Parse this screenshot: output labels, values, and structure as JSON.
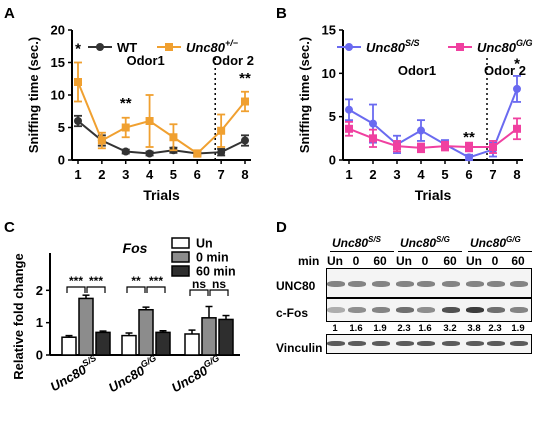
{
  "panels": {
    "a": "A",
    "b": "B",
    "c": "C",
    "d": "D"
  },
  "chart_data": [
    {
      "type": "line",
      "panel": "A",
      "xlabel": "Trials",
      "ylabel": "Sniffing time (sec.)",
      "x": [
        1,
        2,
        3,
        4,
        5,
        6,
        7,
        8
      ],
      "ylim": [
        0,
        20
      ],
      "yticks": [
        0,
        5,
        10,
        15,
        20
      ],
      "series": [
        {
          "name": "WT",
          "values": [
            6,
            3,
            1.3,
            1,
            1.5,
            1,
            1.2,
            3
          ],
          "errors": [
            0.8,
            0.8,
            0.3,
            0.3,
            0.4,
            0.3,
            0.5,
            0.8
          ],
          "color": "#333333",
          "marker": "circle"
        },
        {
          "name": "Unc80",
          "name_sup": "+/−",
          "values": [
            12,
            3,
            5,
            6,
            3.5,
            1,
            4.5,
            9
          ],
          "errors": [
            3,
            1.2,
            1.5,
            4,
            2,
            0.5,
            2.5,
            1.5
          ],
          "color": "#f0a030",
          "marker": "square"
        }
      ],
      "annotations": [
        "*",
        "**",
        "**"
      ],
      "region_labels": [
        "Odor1",
        "Odor 2"
      ]
    },
    {
      "type": "line",
      "panel": "B",
      "xlabel": "Trials",
      "ylabel": "Sniffing time (sec.)",
      "x": [
        1,
        2,
        3,
        4,
        5,
        6,
        7,
        8
      ],
      "ylim": [
        0,
        15
      ],
      "yticks": [
        0,
        5,
        10,
        15
      ],
      "series": [
        {
          "name": "Unc80",
          "name_sup": "S/S",
          "values": [
            5.8,
            4.2,
            1.8,
            3.4,
            1.8,
            0.3,
            1.2,
            8.2
          ],
          "errors": [
            1.2,
            2.2,
            1,
            1.2,
            0.5,
            0.3,
            0.8,
            1.5
          ],
          "color": "#6a6af0",
          "marker": "circle"
        },
        {
          "name": "Unc80",
          "name_sup": "G/G",
          "values": [
            3.6,
            2.5,
            1.6,
            1.4,
            1.6,
            1.5,
            1.5,
            3.6
          ],
          "errors": [
            0.8,
            1,
            0.6,
            0.5,
            0.5,
            0.5,
            0.7,
            1.2
          ],
          "color": "#f040a0",
          "marker": "square"
        }
      ],
      "annotations": [
        "**",
        "*"
      ],
      "region_labels": [
        "Odor1",
        "Odor 2"
      ]
    },
    {
      "type": "bar",
      "panel": "C",
      "title": "Fos",
      "ylabel": "Relative fold change",
      "ylim": [
        0,
        3
      ],
      "yticks": [
        0,
        1,
        2
      ],
      "categories": [
        {
          "name": "Unc80",
          "sup": "S/S"
        },
        {
          "name": "Unc80",
          "sup": "G/G"
        },
        {
          "name": "Unc80",
          "sup": "G/G"
        }
      ],
      "series": [
        {
          "name": "Un",
          "values": [
            0.55,
            0.6,
            0.65
          ],
          "errors": [
            0.05,
            0.08,
            0.12
          ],
          "color": "#ffffff"
        },
        {
          "name": "0 min",
          "values": [
            1.75,
            1.4,
            1.15
          ],
          "errors": [
            0.1,
            0.08,
            0.35
          ],
          "color": "#8c8c8c"
        },
        {
          "name": "60 min",
          "values": [
            0.7,
            0.7,
            1.1
          ],
          "errors": [
            0.04,
            0.05,
            0.12
          ],
          "color": "#2e2e2e"
        }
      ],
      "significance": [
        {
          "group": 0,
          "labels": [
            "***",
            "***"
          ]
        },
        {
          "group": 1,
          "labels": [
            "**",
            "***"
          ]
        },
        {
          "group": 2,
          "labels": [
            "ns",
            "ns"
          ]
        }
      ]
    }
  ],
  "blot": {
    "row_min_label": "min",
    "groups": [
      {
        "name": "Unc80",
        "sup": "S/S",
        "lanes": [
          "Un",
          "0",
          "60"
        ]
      },
      {
        "name": "Unc80",
        "sup": "S/G",
        "lanes": [
          "Un",
          "0",
          "60"
        ]
      },
      {
        "name": "Unc80",
        "sup": "G/G",
        "lanes": [
          "Un",
          "0",
          "60"
        ]
      }
    ],
    "rows": [
      "UNC80",
      "c-Fos",
      "Vinculin"
    ],
    "ratios": [
      "1",
      "1.6",
      "1.9",
      "2.3",
      "1.6",
      "3.2",
      "3.8",
      "2.3",
      "1.9"
    ],
    "cfos_intensity": [
      0.35,
      0.5,
      0.55,
      0.65,
      0.5,
      0.8,
      0.9,
      0.65,
      0.55
    ]
  }
}
